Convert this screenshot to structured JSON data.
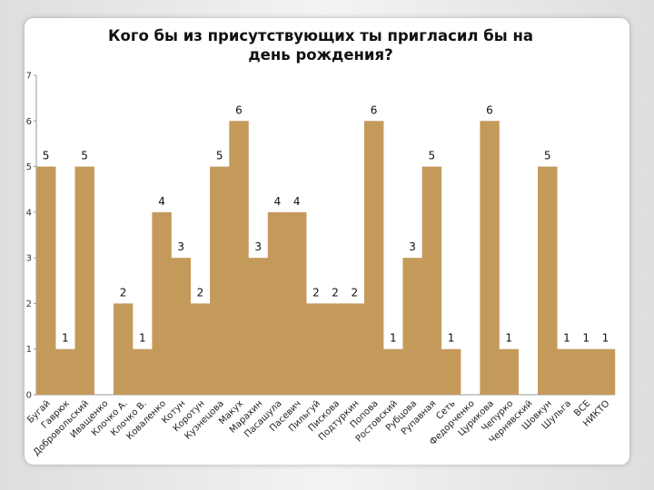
{
  "chart_data": {
    "type": "bar",
    "title_lines": [
      "Кого бы из присутствующих ты пригласил бы на",
      "день рождения?"
    ],
    "xlabel": "",
    "ylabel": "",
    "ylim": [
      0,
      7
    ],
    "yticks": [
      0,
      1,
      2,
      3,
      4,
      5,
      6,
      7
    ],
    "grid": false,
    "legend": "none",
    "bar_color": "#C49A5B",
    "categories": [
      "Бугай",
      "Гаврюк",
      "Добровольский",
      "Иващенко",
      "Клочко А.",
      "Клочко В.",
      "Коваленко",
      "Котун",
      "Коротун",
      "Кузнецова",
      "Макух",
      "Марахин",
      "Пасашула",
      "Пасевич",
      "Пильгуй",
      "Пискова",
      "Подтуркин",
      "Попова",
      "Ростовский",
      "Рубцова",
      "Рупавная",
      "Сеть",
      "Федорченко",
      "Цурикова",
      "Чепурко",
      "Чернявский",
      "Шовкун",
      "Шульга",
      "ВСЕ",
      "НИКТО"
    ],
    "values": [
      5,
      1,
      5,
      0,
      2,
      1,
      4,
      3,
      2,
      5,
      6,
      3,
      4,
      4,
      2,
      2,
      2,
      6,
      1,
      3,
      5,
      1,
      0,
      6,
      1,
      0,
      5,
      1,
      1,
      1
    ]
  }
}
